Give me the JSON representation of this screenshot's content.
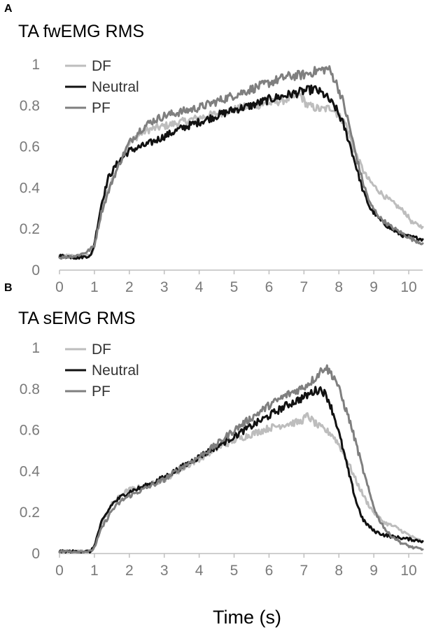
{
  "figure": {
    "xlabel": "Time (s)"
  },
  "chart_data": [
    {
      "type": "line",
      "panel": "A",
      "title": "TA fwEMG RMS",
      "xlim": [
        0,
        10.4
      ],
      "ylim": [
        0,
        1
      ],
      "xticks": [
        0,
        1,
        2,
        3,
        4,
        5,
        6,
        7,
        8,
        9,
        10
      ],
      "yticks": [
        0,
        0.2,
        0.4,
        0.6,
        0.8,
        1
      ],
      "ytick_labels": [
        "0",
        "0.2",
        "0.4",
        "0.6",
        "0.8",
        "1"
      ],
      "legend_position": "top-left",
      "grid": false,
      "series": [
        {
          "name": "DF",
          "color": "#bdbdbd",
          "points": [
            [
              0,
              0.07
            ],
            [
              0.5,
              0.07
            ],
            [
              0.9,
              0.07
            ],
            [
              1.0,
              0.12
            ],
            [
              1.2,
              0.3
            ],
            [
              1.5,
              0.44
            ],
            [
              1.8,
              0.55
            ],
            [
              2.0,
              0.62
            ],
            [
              2.3,
              0.66
            ],
            [
              2.5,
              0.68
            ],
            [
              3.0,
              0.7
            ],
            [
              3.5,
              0.72
            ],
            [
              4.0,
              0.74
            ],
            [
              4.5,
              0.76
            ],
            [
              5.0,
              0.78
            ],
            [
              5.5,
              0.8
            ],
            [
              6.0,
              0.81
            ],
            [
              6.5,
              0.83
            ],
            [
              6.9,
              0.85
            ],
            [
              7.1,
              0.8
            ],
            [
              7.5,
              0.78
            ],
            [
              7.8,
              0.79
            ],
            [
              8.0,
              0.75
            ],
            [
              8.2,
              0.71
            ],
            [
              8.4,
              0.6
            ],
            [
              8.6,
              0.52
            ],
            [
              8.8,
              0.45
            ],
            [
              9.0,
              0.41
            ],
            [
              9.3,
              0.36
            ],
            [
              9.6,
              0.32
            ],
            [
              9.9,
              0.28
            ],
            [
              10.1,
              0.23
            ],
            [
              10.4,
              0.21
            ]
          ]
        },
        {
          "name": "Neutral",
          "color": "#111111",
          "points": [
            [
              0,
              0.07
            ],
            [
              0.5,
              0.06
            ],
            [
              0.9,
              0.07
            ],
            [
              1.0,
              0.13
            ],
            [
              1.2,
              0.32
            ],
            [
              1.4,
              0.45
            ],
            [
              1.7,
              0.53
            ],
            [
              2.0,
              0.58
            ],
            [
              2.5,
              0.61
            ],
            [
              3.0,
              0.65
            ],
            [
              3.5,
              0.69
            ],
            [
              4.0,
              0.72
            ],
            [
              4.5,
              0.75
            ],
            [
              5.0,
              0.78
            ],
            [
              5.5,
              0.8
            ],
            [
              6.0,
              0.83
            ],
            [
              6.5,
              0.85
            ],
            [
              7.0,
              0.87
            ],
            [
              7.3,
              0.88
            ],
            [
              7.6,
              0.85
            ],
            [
              7.9,
              0.79
            ],
            [
              8.1,
              0.72
            ],
            [
              8.3,
              0.62
            ],
            [
              8.5,
              0.5
            ],
            [
              8.7,
              0.38
            ],
            [
              8.9,
              0.3
            ],
            [
              9.2,
              0.24
            ],
            [
              9.5,
              0.2
            ],
            [
              9.8,
              0.17
            ],
            [
              10.1,
              0.16
            ],
            [
              10.4,
              0.15
            ]
          ]
        },
        {
          "name": "PF",
          "color": "#7f7f7f",
          "points": [
            [
              0,
              0.06
            ],
            [
              0.5,
              0.07
            ],
            [
              0.8,
              0.09
            ],
            [
              1.0,
              0.12
            ],
            [
              1.2,
              0.28
            ],
            [
              1.5,
              0.43
            ],
            [
              1.8,
              0.55
            ],
            [
              2.0,
              0.62
            ],
            [
              2.3,
              0.68
            ],
            [
              2.6,
              0.72
            ],
            [
              3.0,
              0.75
            ],
            [
              3.5,
              0.77
            ],
            [
              4.0,
              0.79
            ],
            [
              4.5,
              0.82
            ],
            [
              5.0,
              0.85
            ],
            [
              5.5,
              0.88
            ],
            [
              6.0,
              0.91
            ],
            [
              6.5,
              0.94
            ],
            [
              7.0,
              0.95
            ],
            [
              7.4,
              0.97
            ],
            [
              7.7,
              0.98
            ],
            [
              7.9,
              0.92
            ],
            [
              8.1,
              0.83
            ],
            [
              8.3,
              0.7
            ],
            [
              8.5,
              0.55
            ],
            [
              8.7,
              0.42
            ],
            [
              8.9,
              0.32
            ],
            [
              9.2,
              0.25
            ],
            [
              9.5,
              0.21
            ],
            [
              9.8,
              0.18
            ],
            [
              10.1,
              0.15
            ],
            [
              10.4,
              0.13
            ]
          ]
        }
      ]
    },
    {
      "type": "line",
      "panel": "B",
      "title": "TA sEMG RMS",
      "xlim": [
        0,
        10.4
      ],
      "ylim": [
        0,
        1
      ],
      "xticks": [
        0,
        1,
        2,
        3,
        4,
        5,
        6,
        7,
        8,
        9,
        10
      ],
      "yticks": [
        0,
        0.2,
        0.4,
        0.6,
        0.8,
        1
      ],
      "ytick_labels": [
        "0",
        "0.2",
        "0.4",
        "0.6",
        "0.8",
        "1"
      ],
      "legend_position": "top-left",
      "grid": false,
      "series": [
        {
          "name": "DF",
          "color": "#bdbdbd",
          "points": [
            [
              0,
              0.01
            ],
            [
              0.5,
              0.01
            ],
            [
              0.9,
              0.01
            ],
            [
              1.0,
              0.04
            ],
            [
              1.2,
              0.14
            ],
            [
              1.5,
              0.24
            ],
            [
              1.8,
              0.29
            ],
            [
              2.0,
              0.31
            ],
            [
              2.5,
              0.33
            ],
            [
              3.0,
              0.36
            ],
            [
              3.5,
              0.41
            ],
            [
              4.0,
              0.46
            ],
            [
              4.5,
              0.51
            ],
            [
              5.0,
              0.55
            ],
            [
              5.5,
              0.58
            ],
            [
              6.0,
              0.61
            ],
            [
              6.5,
              0.63
            ],
            [
              6.9,
              0.64
            ],
            [
              7.1,
              0.67
            ],
            [
              7.4,
              0.62
            ],
            [
              7.8,
              0.58
            ],
            [
              8.0,
              0.53
            ],
            [
              8.3,
              0.43
            ],
            [
              8.5,
              0.35
            ],
            [
              8.8,
              0.25
            ],
            [
              9.0,
              0.2
            ],
            [
              9.3,
              0.15
            ],
            [
              9.6,
              0.13
            ],
            [
              9.9,
              0.1
            ],
            [
              10.2,
              0.07
            ],
            [
              10.4,
              0.06
            ]
          ]
        },
        {
          "name": "Neutral",
          "color": "#111111",
          "points": [
            [
              0,
              0.01
            ],
            [
              0.5,
              0.01
            ],
            [
              0.9,
              0.01
            ],
            [
              1.0,
              0.04
            ],
            [
              1.2,
              0.15
            ],
            [
              1.5,
              0.24
            ],
            [
              1.8,
              0.28
            ],
            [
              2.0,
              0.3
            ],
            [
              2.5,
              0.33
            ],
            [
              3.0,
              0.37
            ],
            [
              3.5,
              0.42
            ],
            [
              4.0,
              0.47
            ],
            [
              4.5,
              0.52
            ],
            [
              5.0,
              0.57
            ],
            [
              5.5,
              0.62
            ],
            [
              6.0,
              0.67
            ],
            [
              6.5,
              0.72
            ],
            [
              7.0,
              0.76
            ],
            [
              7.3,
              0.79
            ],
            [
              7.5,
              0.8
            ],
            [
              7.7,
              0.75
            ],
            [
              7.9,
              0.65
            ],
            [
              8.1,
              0.52
            ],
            [
              8.3,
              0.38
            ],
            [
              8.5,
              0.25
            ],
            [
              8.7,
              0.16
            ],
            [
              9.0,
              0.11
            ],
            [
              9.3,
              0.09
            ],
            [
              9.6,
              0.08
            ],
            [
              10.0,
              0.07
            ],
            [
              10.4,
              0.06
            ]
          ]
        },
        {
          "name": "PF",
          "color": "#7f7f7f",
          "points": [
            [
              0,
              0.01
            ],
            [
              0.5,
              0.01
            ],
            [
              0.9,
              0.01
            ],
            [
              1.0,
              0.03
            ],
            [
              1.2,
              0.12
            ],
            [
              1.5,
              0.21
            ],
            [
              1.8,
              0.26
            ],
            [
              2.0,
              0.28
            ],
            [
              2.5,
              0.32
            ],
            [
              3.0,
              0.36
            ],
            [
              3.5,
              0.42
            ],
            [
              4.0,
              0.47
            ],
            [
              4.5,
              0.53
            ],
            [
              5.0,
              0.6
            ],
            [
              5.5,
              0.66
            ],
            [
              6.0,
              0.72
            ],
            [
              6.5,
              0.77
            ],
            [
              7.0,
              0.81
            ],
            [
              7.3,
              0.85
            ],
            [
              7.6,
              0.91
            ],
            [
              7.9,
              0.85
            ],
            [
              8.1,
              0.75
            ],
            [
              8.3,
              0.65
            ],
            [
              8.5,
              0.53
            ],
            [
              8.7,
              0.4
            ],
            [
              8.9,
              0.28
            ],
            [
              9.1,
              0.18
            ],
            [
              9.4,
              0.1
            ],
            [
              9.8,
              0.05
            ],
            [
              10.1,
              0.03
            ],
            [
              10.4,
              0.02
            ]
          ]
        }
      ]
    }
  ]
}
